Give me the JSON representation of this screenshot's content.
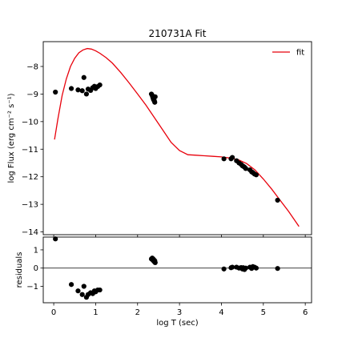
{
  "chart_data": {
    "type": "scatter",
    "title": "210731A Fit",
    "xlabel": "log T (sec)",
    "xlim": [
      -0.25,
      6.15
    ],
    "xticks": [
      0,
      1,
      2,
      3,
      4,
      5,
      6
    ],
    "xtick_labels": [
      "0",
      "1",
      "2",
      "3",
      "4",
      "5",
      "6"
    ],
    "main_panel": {
      "ylabel": "log Flux (erg cm⁻² s⁻¹)",
      "ylim": [
        -14.1,
        -7.1
      ],
      "yticks": [
        -14,
        -13,
        -12,
        -11,
        -10,
        -9,
        -8
      ],
      "ytick_labels": [
        "−14",
        "−13",
        "−12",
        "−11",
        "−10",
        "−9",
        "−8"
      ],
      "legend": {
        "position": "top-right",
        "entries": [
          {
            "label": "fit",
            "color": "#e8000b"
          }
        ]
      },
      "series": [
        {
          "name": "fit",
          "kind": "line",
          "color": "#e8000b",
          "x": [
            0.02,
            0.1,
            0.2,
            0.3,
            0.4,
            0.5,
            0.6,
            0.7,
            0.8,
            0.9,
            1.0,
            1.1,
            1.25,
            1.4,
            1.6,
            1.8,
            2.0,
            2.2,
            2.4,
            2.6,
            2.8,
            3.0,
            3.2,
            3.4,
            3.6,
            3.8,
            4.0,
            4.2,
            4.4,
            4.6,
            4.8,
            5.0,
            5.2,
            5.4,
            5.6,
            5.85
          ],
          "y": [
            -10.65,
            -9.9,
            -9.05,
            -8.45,
            -8.0,
            -7.7,
            -7.5,
            -7.4,
            -7.35,
            -7.37,
            -7.43,
            -7.52,
            -7.68,
            -7.88,
            -8.22,
            -8.6,
            -9.0,
            -9.4,
            -9.85,
            -10.3,
            -10.75,
            -11.05,
            -11.2,
            -11.22,
            -11.24,
            -11.26,
            -11.28,
            -11.32,
            -11.38,
            -11.52,
            -11.75,
            -12.08,
            -12.45,
            -12.85,
            -13.25,
            -13.8
          ]
        },
        {
          "name": "data",
          "kind": "points",
          "color": "#000000",
          "x": [
            0.04,
            0.42,
            0.58,
            0.68,
            0.72,
            0.78,
            0.82,
            0.88,
            0.93,
            0.97,
            1.0,
            1.05,
            1.1,
            2.33,
            2.35,
            2.36,
            2.37,
            2.38,
            2.39,
            2.4,
            2.41,
            2.42,
            4.06,
            4.23,
            4.26,
            4.36,
            4.42,
            4.47,
            4.5,
            4.52,
            4.55,
            4.58,
            4.68,
            4.72,
            4.75,
            4.79,
            4.83,
            5.34
          ],
          "y": [
            -8.93,
            -8.8,
            -8.85,
            -8.88,
            -8.4,
            -9.0,
            -8.82,
            -8.87,
            -8.77,
            -8.72,
            -8.8,
            -8.73,
            -8.67,
            -9.0,
            -9.05,
            -9.1,
            -9.15,
            -9.2,
            -9.22,
            -9.25,
            -9.3,
            -9.1,
            -11.35,
            -11.35,
            -11.3,
            -11.42,
            -11.5,
            -11.55,
            -11.6,
            -11.62,
            -11.65,
            -11.7,
            -11.75,
            -11.82,
            -11.85,
            -11.9,
            -11.93,
            -12.85
          ]
        }
      ]
    },
    "residual_panel": {
      "ylabel": "residuals",
      "ylim": [
        -1.9,
        1.7
      ],
      "yticks": [
        -1,
        0,
        1
      ],
      "ytick_labels": [
        "−1",
        "0",
        "1"
      ],
      "zero_line": true,
      "series": [
        {
          "name": "residuals",
          "kind": "points",
          "color": "#000000",
          "x": [
            0.04,
            0.42,
            0.58,
            0.68,
            0.72,
            0.78,
            0.82,
            0.88,
            0.93,
            0.97,
            1.0,
            1.05,
            1.1,
            2.33,
            2.35,
            2.36,
            2.37,
            2.38,
            2.39,
            2.4,
            2.41,
            2.42,
            4.06,
            4.23,
            4.26,
            4.36,
            4.42,
            4.47,
            4.5,
            4.52,
            4.55,
            4.58,
            4.68,
            4.72,
            4.75,
            4.79,
            4.83,
            5.34
          ],
          "y": [
            1.6,
            -0.9,
            -1.25,
            -1.45,
            -1.0,
            -1.6,
            -1.45,
            -1.35,
            -1.4,
            -1.25,
            -1.3,
            -1.2,
            -1.2,
            0.5,
            0.55,
            0.45,
            0.5,
            0.4,
            0.45,
            0.35,
            0.4,
            0.3,
            -0.05,
            0.02,
            0.05,
            0.05,
            0.0,
            0.03,
            -0.05,
            0.02,
            -0.08,
            0.0,
            0.05,
            -0.02,
            0.08,
            0.05,
            0.0,
            -0.02
          ]
        }
      ]
    }
  }
}
